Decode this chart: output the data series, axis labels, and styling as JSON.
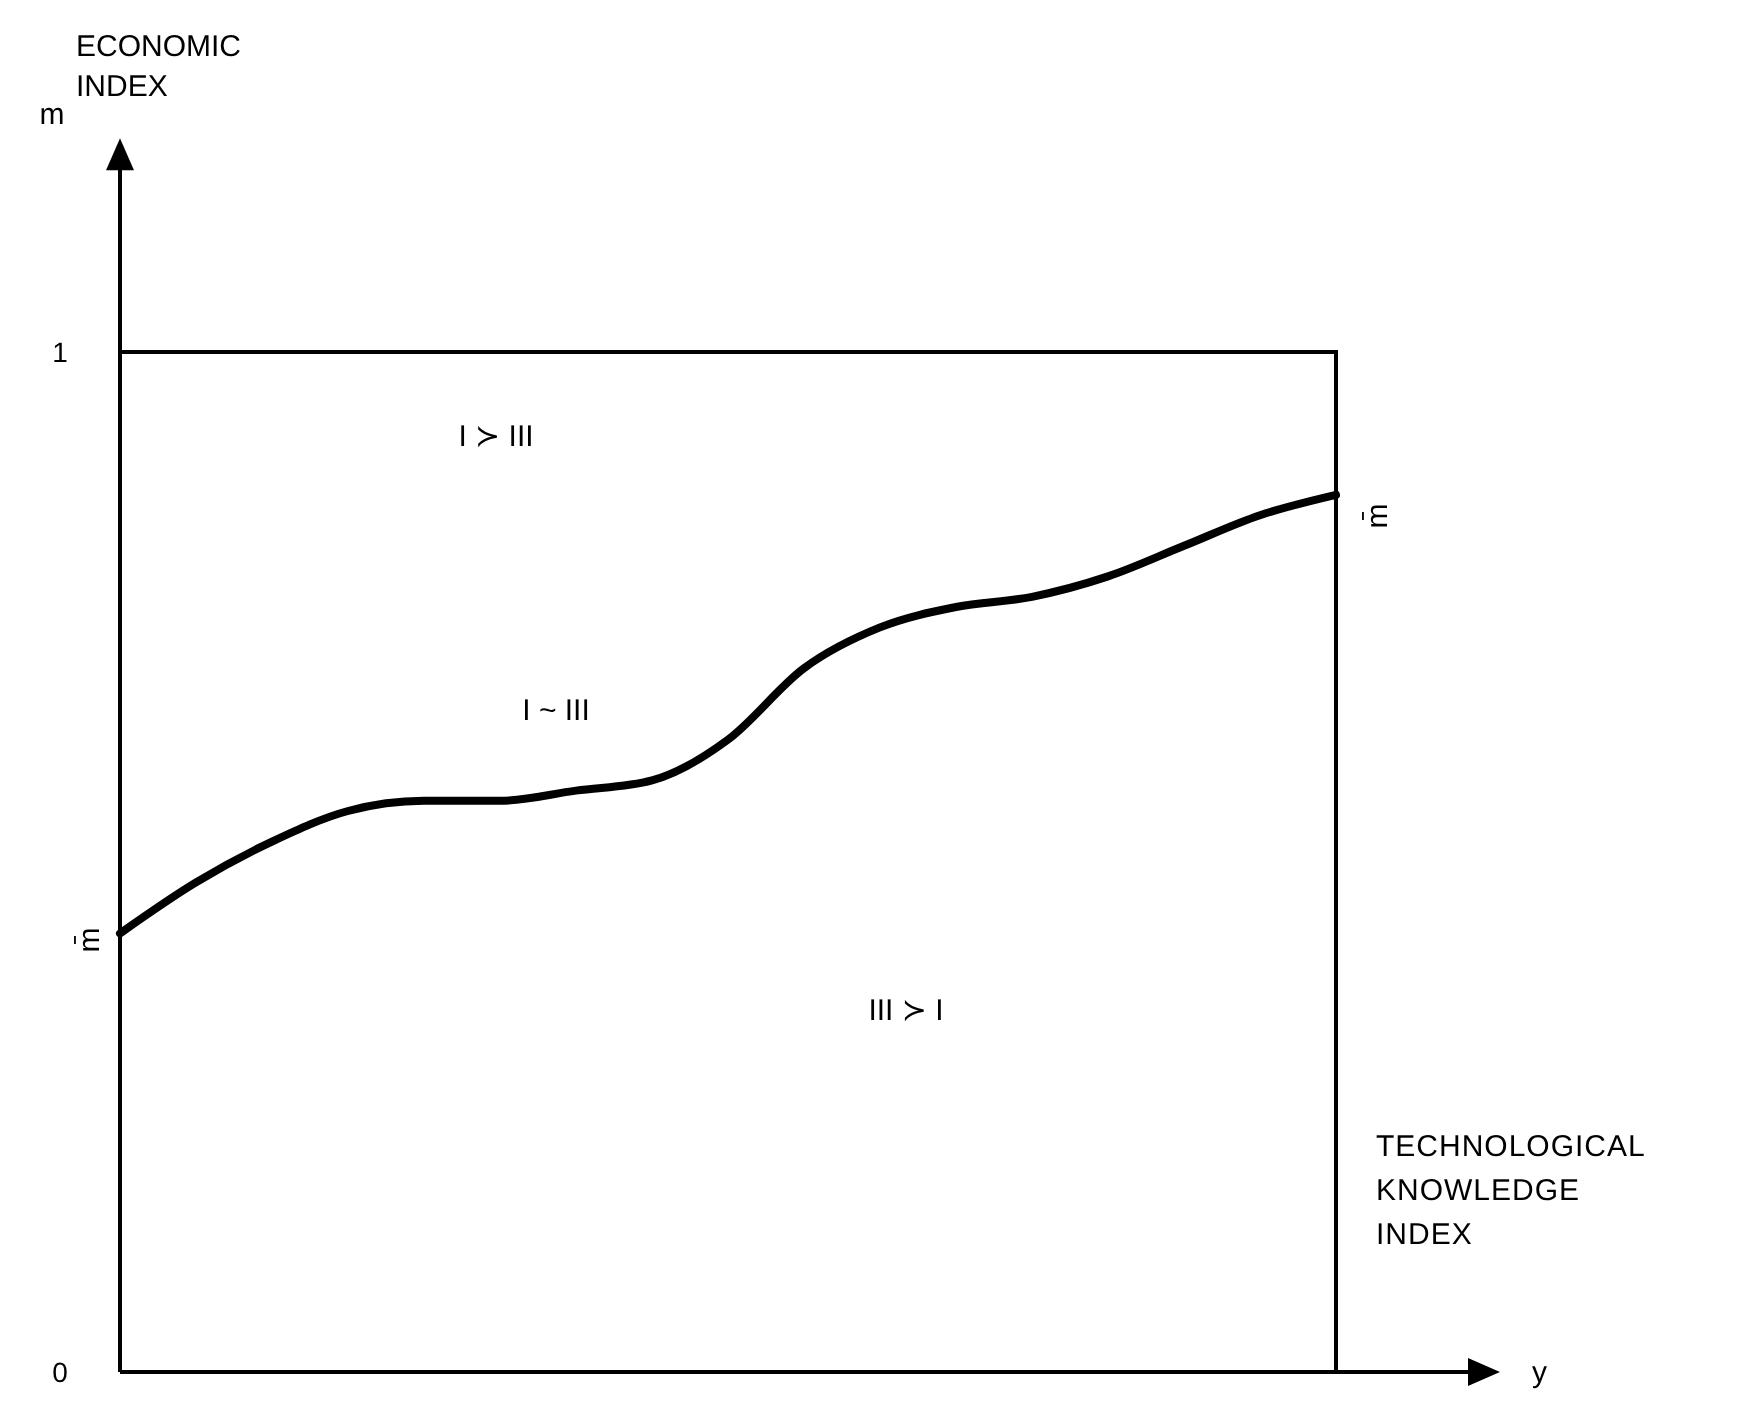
{
  "chart_data": {
    "type": "line",
    "xlabel": "TECHNOLOGICAL KNOWLEDGE INDEX",
    "ylabel": "ECONOMIC INDEX",
    "categories": [
      null,
      null,
      null,
      null,
      null,
      null,
      null,
      null,
      null,
      null,
      null,
      null,
      null,
      null,
      null,
      null,
      null
    ],
    "series": [
      {
        "color": "#000000",
        "values": [
          0.43,
          0.48,
          0.52,
          0.55,
          0.56,
          0.56,
          0.57,
          0.58,
          0.62,
          0.69,
          0.73,
          0.75,
          0.76,
          0.78,
          0.81,
          0.84,
          0.86
        ]
      }
    ],
    "ylim": [
      0,
      1.19
    ],
    "yticks": [
      0,
      1
    ],
    "marker": "none",
    "line_style": "solid",
    "ref_lines": [
      {
        "axis": "y",
        "value": 1
      }
    ],
    "annotations": [
      "m",
      "y",
      "I ≻ III",
      "I ~ III",
      "III ≻ I",
      "m̄",
      "m̄"
    ]
  }
}
